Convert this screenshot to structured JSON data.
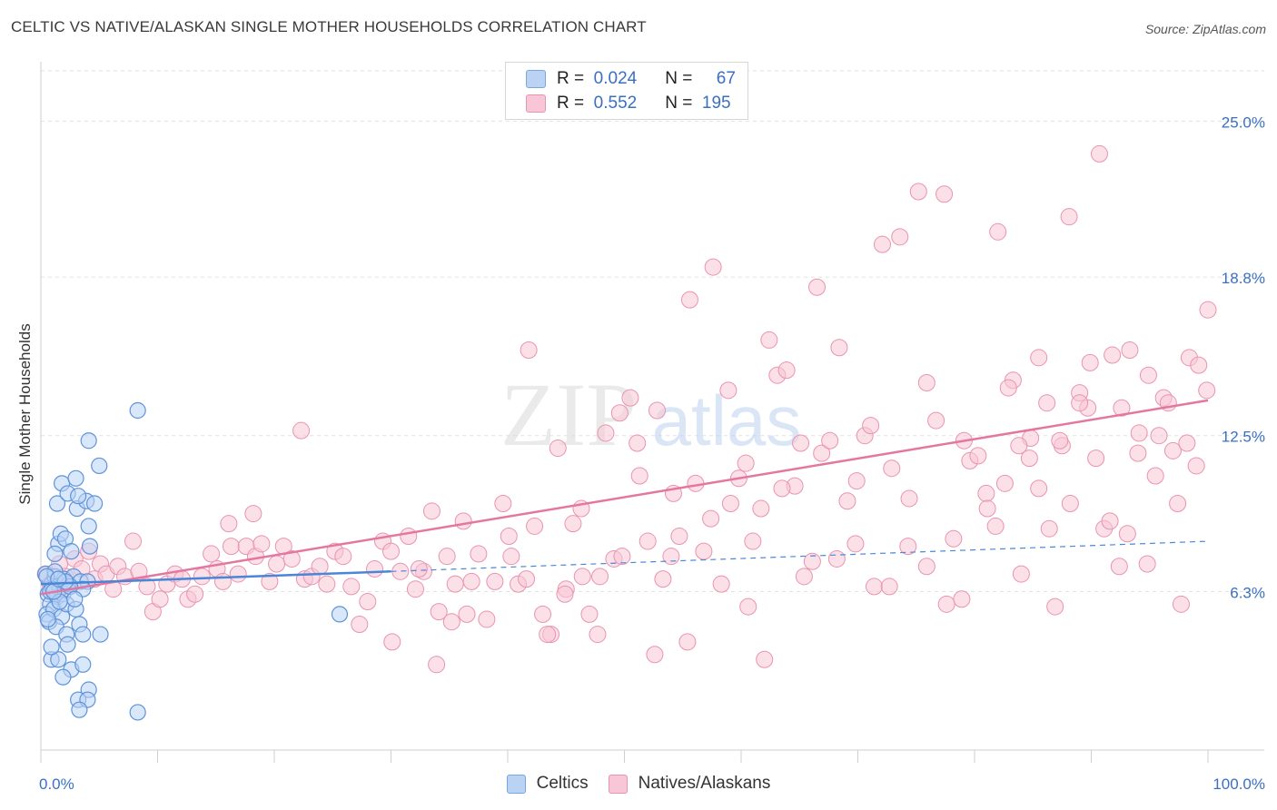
{
  "header": {
    "title": "CELTIC VS NATIVE/ALASKAN SINGLE MOTHER HOUSEHOLDS CORRELATION CHART",
    "source": "Source: ZipAtlas.com"
  },
  "watermark": {
    "zip": "ZIP",
    "atlas": "atlas"
  },
  "legend": {
    "rows": [
      {
        "r_label": "R =",
        "r_value": "0.024",
        "n_label": "N =",
        "n_value": "67",
        "fill": "#bad3f5",
        "stroke": "#7aa6e0"
      },
      {
        "r_label": "R =",
        "r_value": "0.552",
        "n_label": "N =",
        "n_value": "195",
        "fill": "#f8c6d6",
        "stroke": "#e993b1"
      }
    ]
  },
  "bottom_legend": [
    {
      "label": "Celtics",
      "fill": "#bad3f5",
      "stroke": "#7aa6e0"
    },
    {
      "label": "Natives/Alaskans",
      "fill": "#f8c6d6",
      "stroke": "#e993b1"
    }
  ],
  "chart_data": {
    "type": "scatter",
    "title": "CELTIC VS NATIVE/ALASKAN SINGLE MOTHER HOUSEHOLDS CORRELATION CHART",
    "xlabel": "",
    "ylabel": "Single Mother Households",
    "xlim": [
      0,
      100
    ],
    "ylim": [
      0,
      27
    ],
    "x_tick_labels": [
      "0.0%",
      "100.0%"
    ],
    "y_ticks": [
      6.3,
      12.5,
      18.8,
      25.0
    ],
    "y_tick_labels": [
      "6.3%",
      "12.5%",
      "18.8%",
      "25.0%"
    ],
    "colors": {
      "celtics": "#4a86d8",
      "natives": "#e4779f",
      "celtics_fill": "#bad3f5",
      "natives_fill": "#f8c6d6",
      "grid": "#e2e2e2",
      "axis_text": "#3a6fc4"
    },
    "series": [
      {
        "name": "Celtics",
        "trend": {
          "x0": 0,
          "y0": 6.6,
          "x1": 30,
          "y1": 7.1,
          "dash_to_x": 100,
          "dash_to_y": 8.3
        },
        "points": [
          [
            0.4,
            7.0
          ],
          [
            0.6,
            6.2
          ],
          [
            0.8,
            5.8
          ],
          [
            0.5,
            5.4
          ],
          [
            0.9,
            6.6
          ],
          [
            1.2,
            6.9
          ],
          [
            0.7,
            5.1
          ],
          [
            1.0,
            6.4
          ],
          [
            1.4,
            6.1
          ],
          [
            1.1,
            5.6
          ],
          [
            1.6,
            6.4
          ],
          [
            2.0,
            6.8
          ],
          [
            1.8,
            5.3
          ],
          [
            1.3,
            4.9
          ],
          [
            0.9,
            3.6
          ],
          [
            1.5,
            8.2
          ],
          [
            1.2,
            7.8
          ],
          [
            1.7,
            8.6
          ],
          [
            1.4,
            9.8
          ],
          [
            2.1,
            8.4
          ],
          [
            1.9,
            6.2
          ],
          [
            2.4,
            6.6
          ],
          [
            2.8,
            6.9
          ],
          [
            2.2,
            5.8
          ],
          [
            3.0,
            5.6
          ],
          [
            3.4,
            6.7
          ],
          [
            2.6,
            7.9
          ],
          [
            1.8,
            10.6
          ],
          [
            2.3,
            10.2
          ],
          [
            3.1,
            9.6
          ],
          [
            3.9,
            9.9
          ],
          [
            3.2,
            10.1
          ],
          [
            4.6,
            9.8
          ],
          [
            4.2,
            8.1
          ],
          [
            4.0,
            6.7
          ],
          [
            3.6,
            6.4
          ],
          [
            2.5,
            6.5
          ],
          [
            2.9,
            6.0
          ],
          [
            3.3,
            5.0
          ],
          [
            3.6,
            4.6
          ],
          [
            2.2,
            4.6
          ],
          [
            1.5,
            3.6
          ],
          [
            2.6,
            3.2
          ],
          [
            3.6,
            3.4
          ],
          [
            1.9,
            2.9
          ],
          [
            4.1,
            2.4
          ],
          [
            3.2,
            2.0
          ],
          [
            4.0,
            2.0
          ],
          [
            3.3,
            1.6
          ],
          [
            8.3,
            1.5
          ],
          [
            4.1,
            12.3
          ],
          [
            5.0,
            11.3
          ],
          [
            8.3,
            13.5
          ],
          [
            3.0,
            10.8
          ],
          [
            4.1,
            8.9
          ],
          [
            5.1,
            4.6
          ],
          [
            2.3,
            4.2
          ],
          [
            0.9,
            4.1
          ],
          [
            1.2,
            7.1
          ],
          [
            0.5,
            6.9
          ],
          [
            0.8,
            6.3
          ],
          [
            1.6,
            5.9
          ],
          [
            2.1,
            6.7
          ],
          [
            0.6,
            5.2
          ],
          [
            1.1,
            6.3
          ],
          [
            1.5,
            6.8
          ],
          [
            25.6,
            5.4
          ]
        ]
      },
      {
        "name": "Natives/Alaskans",
        "trend": {
          "x0": 0,
          "y0": 6.2,
          "x1": 100,
          "y1": 13.9
        },
        "points": [
          [
            0.4,
            7.0
          ],
          [
            0.8,
            6.6
          ],
          [
            1.1,
            6.3
          ],
          [
            1.6,
            7.4
          ],
          [
            2.1,
            6.9
          ],
          [
            2.4,
            6.5
          ],
          [
            2.9,
            7.6
          ],
          [
            3.5,
            7.2
          ],
          [
            4.1,
            7.9
          ],
          [
            4.6,
            6.8
          ],
          [
            5.1,
            7.4
          ],
          [
            5.6,
            7.0
          ],
          [
            6.2,
            6.4
          ],
          [
            6.6,
            7.3
          ],
          [
            7.2,
            6.9
          ],
          [
            7.9,
            8.3
          ],
          [
            8.4,
            7.1
          ],
          [
            9.1,
            6.5
          ],
          [
            9.6,
            5.5
          ],
          [
            10.2,
            6.0
          ],
          [
            10.8,
            6.6
          ],
          [
            11.5,
            7.0
          ],
          [
            12.1,
            6.8
          ],
          [
            12.6,
            6.0
          ],
          [
            13.2,
            6.2
          ],
          [
            13.8,
            6.9
          ],
          [
            14.6,
            7.8
          ],
          [
            15.1,
            7.2
          ],
          [
            15.6,
            6.7
          ],
          [
            16.3,
            8.1
          ],
          [
            16.9,
            7.0
          ],
          [
            17.6,
            8.1
          ],
          [
            18.4,
            7.7
          ],
          [
            18.9,
            8.2
          ],
          [
            19.6,
            6.7
          ],
          [
            20.2,
            7.4
          ],
          [
            20.8,
            8.1
          ],
          [
            21.5,
            7.6
          ],
          [
            22.6,
            6.8
          ],
          [
            23.2,
            6.9
          ],
          [
            23.9,
            7.3
          ],
          [
            24.5,
            6.6
          ],
          [
            25.2,
            7.9
          ],
          [
            25.9,
            7.7
          ],
          [
            26.6,
            6.5
          ],
          [
            27.3,
            5.0
          ],
          [
            28.0,
            5.9
          ],
          [
            28.6,
            7.2
          ],
          [
            29.3,
            8.3
          ],
          [
            30.0,
            7.9
          ],
          [
            30.8,
            7.1
          ],
          [
            31.5,
            8.5
          ],
          [
            32.1,
            6.4
          ],
          [
            32.8,
            7.1
          ],
          [
            33.5,
            9.5
          ],
          [
            34.1,
            5.5
          ],
          [
            34.8,
            7.7
          ],
          [
            35.5,
            6.6
          ],
          [
            36.2,
            9.1
          ],
          [
            36.9,
            6.7
          ],
          [
            37.5,
            7.8
          ],
          [
            38.2,
            5.2
          ],
          [
            38.9,
            6.7
          ],
          [
            39.6,
            9.8
          ],
          [
            40.3,
            7.7
          ],
          [
            40.9,
            6.6
          ],
          [
            41.6,
            6.8
          ],
          [
            42.3,
            8.9
          ],
          [
            43.0,
            5.4
          ],
          [
            43.7,
            4.6
          ],
          [
            44.3,
            12.0
          ],
          [
            45.0,
            6.4
          ],
          [
            45.6,
            9.0
          ],
          [
            46.4,
            6.9
          ],
          [
            47.0,
            5.4
          ],
          [
            47.7,
            4.6
          ],
          [
            48.4,
            12.6
          ],
          [
            49.1,
            7.6
          ],
          [
            49.8,
            7.7
          ],
          [
            50.5,
            14.0
          ],
          [
            51.3,
            10.9
          ],
          [
            52.0,
            8.3
          ],
          [
            52.6,
            3.8
          ],
          [
            53.3,
            6.8
          ],
          [
            54.0,
            7.7
          ],
          [
            54.7,
            8.5
          ],
          [
            55.4,
            4.3
          ],
          [
            56.1,
            10.6
          ],
          [
            56.8,
            7.9
          ],
          [
            57.6,
            19.2
          ],
          [
            58.3,
            6.6
          ],
          [
            59.1,
            9.8
          ],
          [
            59.8,
            10.8
          ],
          [
            60.4,
            11.4
          ],
          [
            61.0,
            8.3
          ],
          [
            61.7,
            9.6
          ],
          [
            62.4,
            16.3
          ],
          [
            63.1,
            14.9
          ],
          [
            63.9,
            15.1
          ],
          [
            64.6,
            10.5
          ],
          [
            65.4,
            6.9
          ],
          [
            66.1,
            7.5
          ],
          [
            66.9,
            11.8
          ],
          [
            67.6,
            12.3
          ],
          [
            68.4,
            16.0
          ],
          [
            69.1,
            9.9
          ],
          [
            69.9,
            10.7
          ],
          [
            70.6,
            12.5
          ],
          [
            71.4,
            6.5
          ],
          [
            72.1,
            20.1
          ],
          [
            72.9,
            11.2
          ],
          [
            73.6,
            20.4
          ],
          [
            74.4,
            10.0
          ],
          [
            75.2,
            22.2
          ],
          [
            75.9,
            7.3
          ],
          [
            76.7,
            13.1
          ],
          [
            77.4,
            22.1
          ],
          [
            78.2,
            8.4
          ],
          [
            78.9,
            6.0
          ],
          [
            79.6,
            11.5
          ],
          [
            80.3,
            11.7
          ],
          [
            81.0,
            10.2
          ],
          [
            81.8,
            8.9
          ],
          [
            82.6,
            10.6
          ],
          [
            83.3,
            14.7
          ],
          [
            84.0,
            7.0
          ],
          [
            84.8,
            12.4
          ],
          [
            85.5,
            10.4
          ],
          [
            86.2,
            13.8
          ],
          [
            86.9,
            5.7
          ],
          [
            87.5,
            12.1
          ],
          [
            88.2,
            9.8
          ],
          [
            89.0,
            14.2
          ],
          [
            89.7,
            13.6
          ],
          [
            90.4,
            11.6
          ],
          [
            91.1,
            8.8
          ],
          [
            91.8,
            15.7
          ],
          [
            92.6,
            13.6
          ],
          [
            93.3,
            15.9
          ],
          [
            94.1,
            12.6
          ],
          [
            94.8,
            7.4
          ],
          [
            95.5,
            10.9
          ],
          [
            96.2,
            14.0
          ],
          [
            97.0,
            11.9
          ],
          [
            97.7,
            5.8
          ],
          [
            98.4,
            15.6
          ],
          [
            99.2,
            15.3
          ],
          [
            99.9,
            14.3
          ],
          [
            100.0,
            17.5
          ],
          [
            99.0,
            11.3
          ],
          [
            98.2,
            12.2
          ],
          [
            97.4,
            9.8
          ],
          [
            96.6,
            13.8
          ],
          [
            95.8,
            12.5
          ],
          [
            94.9,
            14.9
          ],
          [
            94.0,
            11.8
          ],
          [
            93.1,
            8.6
          ],
          [
            92.4,
            7.3
          ],
          [
            91.6,
            9.1
          ],
          [
            90.7,
            23.7
          ],
          [
            89.9,
            15.4
          ],
          [
            89.0,
            13.8
          ],
          [
            88.1,
            21.2
          ],
          [
            87.3,
            12.3
          ],
          [
            86.4,
            8.8
          ],
          [
            85.5,
            15.6
          ],
          [
            84.7,
            11.6
          ],
          [
            83.8,
            12.1
          ],
          [
            82.9,
            14.4
          ],
          [
            82.0,
            20.6
          ],
          [
            81.1,
            9.6
          ],
          [
            79.1,
            12.3
          ],
          [
            77.6,
            5.8
          ],
          [
            75.9,
            14.6
          ],
          [
            74.3,
            8.1
          ],
          [
            72.7,
            6.5
          ],
          [
            71.1,
            12.9
          ],
          [
            69.8,
            8.2
          ],
          [
            68.2,
            7.6
          ],
          [
            66.5,
            18.4
          ],
          [
            65.1,
            12.2
          ],
          [
            63.5,
            10.4
          ],
          [
            62.0,
            3.6
          ],
          [
            60.6,
            5.7
          ],
          [
            58.9,
            14.3
          ],
          [
            57.4,
            9.2
          ],
          [
            55.6,
            17.9
          ],
          [
            54.2,
            10.2
          ],
          [
            52.8,
            13.5
          ],
          [
            51.1,
            12.2
          ],
          [
            49.6,
            13.4
          ],
          [
            47.9,
            6.9
          ],
          [
            46.3,
            9.6
          ],
          [
            44.9,
            6.2
          ],
          [
            43.4,
            4.6
          ],
          [
            41.8,
            15.9
          ],
          [
            40.1,
            8.5
          ],
          [
            36.5,
            5.4
          ],
          [
            35.2,
            5.1
          ],
          [
            33.9,
            3.4
          ],
          [
            32.4,
            7.2
          ],
          [
            30.1,
            4.3
          ],
          [
            22.3,
            12.7
          ],
          [
            18.2,
            9.4
          ],
          [
            16.1,
            9.0
          ]
        ]
      }
    ]
  }
}
